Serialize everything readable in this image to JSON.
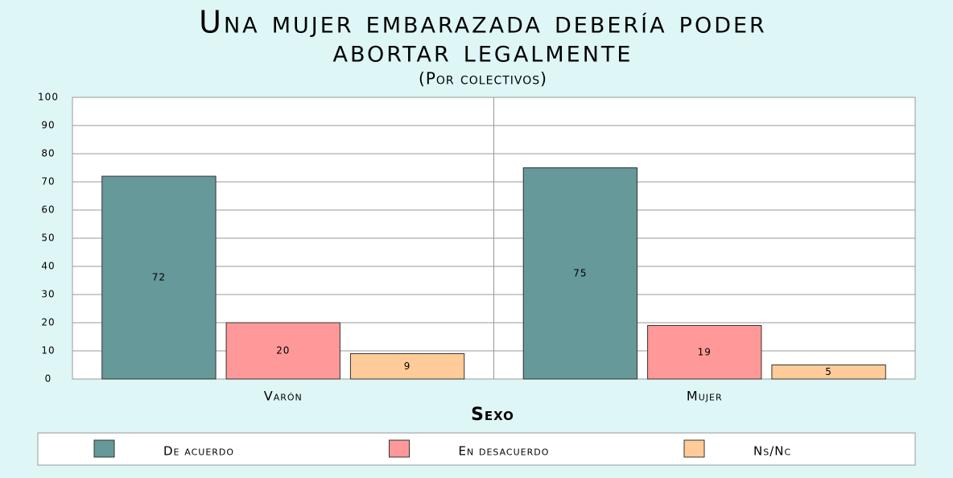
{
  "chart_data": {
    "type": "bar",
    "title": [
      "Una mujer embarazada debería poder",
      "abortar legalmente"
    ],
    "subtitle": "(Por colectivos)",
    "x_label": "Sexo",
    "categories": [
      "Varón",
      "Mujer"
    ],
    "series": [
      {
        "name": "De acuerdo",
        "color": "#669999",
        "values": [
          72,
          75
        ]
      },
      {
        "name": "En desacuerdo",
        "color": "#ff9999",
        "values": [
          20,
          19
        ]
      },
      {
        "name": "Ns/Nc",
        "color": "#ffcc99",
        "values": [
          9,
          5
        ]
      }
    ],
    "ylim": [
      0,
      100
    ],
    "yticks": [
      0,
      10,
      20,
      30,
      40,
      50,
      60,
      70,
      80,
      90,
      100
    ],
    "grid": true
  }
}
